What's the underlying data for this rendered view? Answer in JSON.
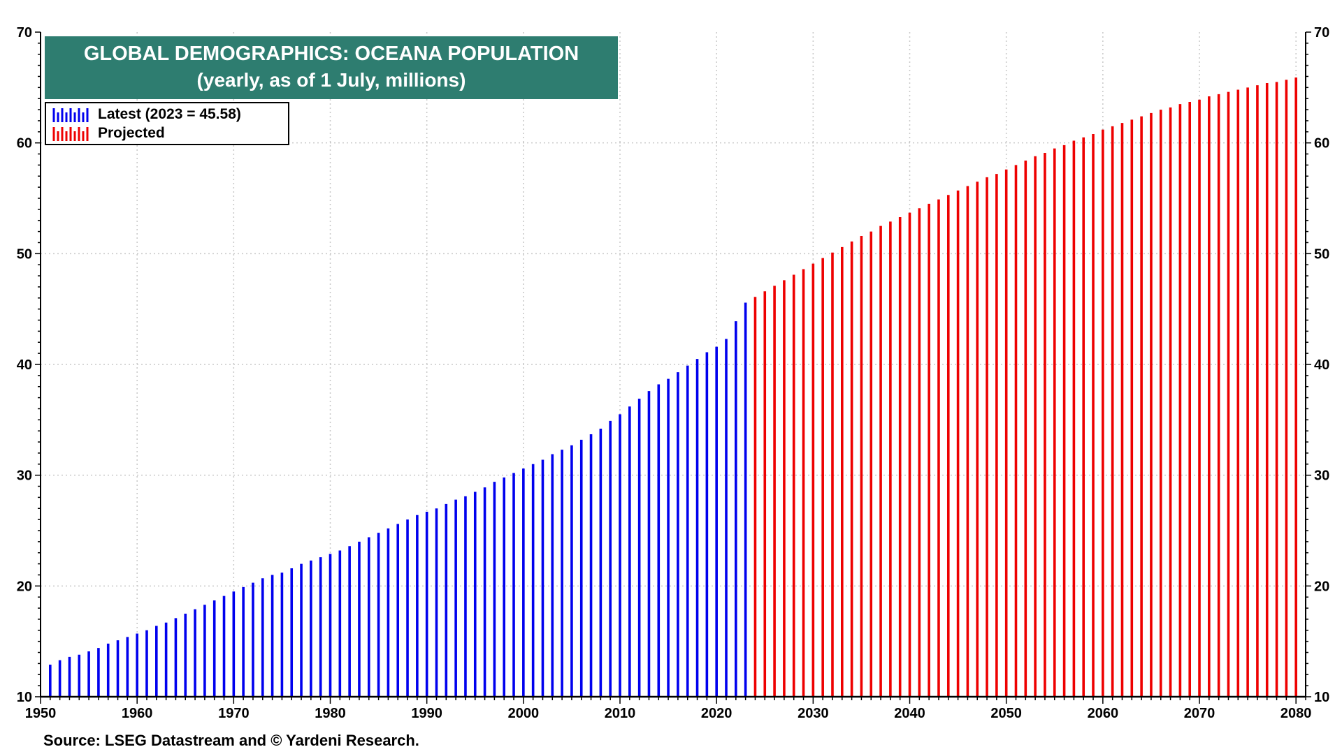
{
  "title": {
    "line1": "GLOBAL DEMOGRAPHICS: OCEANA POPULATION",
    "line2": "(yearly, as of 1 July, millions)"
  },
  "legend": {
    "latest_label": "Latest (2023 = 45.58)",
    "projected_label": "Projected"
  },
  "source": "Source: LSEG Datastream and © Yardeni Research.",
  "colors": {
    "latest": "#0000ee",
    "projected": "#ee0000",
    "title_bg": "#2e7d70",
    "grid": "#c8c8c8"
  },
  "chart_data": {
    "type": "bar",
    "title": "GLOBAL DEMOGRAPHICS: OCEANA POPULATION",
    "subtitle": "(yearly, as of 1 July, millions)",
    "xlabel": "",
    "ylabel": "",
    "xlim": [
      1950,
      2081
    ],
    "ylim": [
      10,
      70
    ],
    "grid": true,
    "legend_position": "top-left",
    "x_ticks": [
      "1950",
      "1960",
      "1970",
      "1980",
      "1990",
      "2000",
      "2010",
      "2020",
      "2030",
      "2040",
      "2050",
      "2060",
      "2070",
      "2080"
    ],
    "y_ticks": [
      "10",
      "20",
      "30",
      "40",
      "50",
      "60",
      "70"
    ],
    "series": [
      {
        "name": "Latest (2023 = 45.58)",
        "color": "#0000ee",
        "x": [
          1951,
          1952,
          1953,
          1954,
          1955,
          1956,
          1957,
          1958,
          1959,
          1960,
          1961,
          1962,
          1963,
          1964,
          1965,
          1966,
          1967,
          1968,
          1969,
          1970,
          1971,
          1972,
          1973,
          1974,
          1975,
          1976,
          1977,
          1978,
          1979,
          1980,
          1981,
          1982,
          1983,
          1984,
          1985,
          1986,
          1987,
          1988,
          1989,
          1990,
          1991,
          1992,
          1993,
          1994,
          1995,
          1996,
          1997,
          1998,
          1999,
          2000,
          2001,
          2002,
          2003,
          2004,
          2005,
          2006,
          2007,
          2008,
          2009,
          2010,
          2011,
          2012,
          2013,
          2014,
          2015,
          2016,
          2017,
          2018,
          2019,
          2020,
          2021,
          2022,
          2023
        ],
        "values": [
          12.9,
          13.3,
          13.6,
          13.8,
          14.1,
          14.4,
          14.8,
          15.1,
          15.4,
          15.7,
          16.0,
          16.4,
          16.7,
          17.1,
          17.5,
          17.9,
          18.3,
          18.7,
          19.1,
          19.5,
          19.9,
          20.3,
          20.7,
          21.0,
          21.2,
          21.6,
          22.0,
          22.3,
          22.6,
          22.9,
          23.2,
          23.6,
          24.0,
          24.4,
          24.8,
          25.2,
          25.6,
          26.0,
          26.4,
          26.7,
          27.0,
          27.4,
          27.8,
          28.1,
          28.5,
          28.9,
          29.4,
          29.8,
          30.2,
          30.6,
          31.0,
          31.4,
          31.9,
          32.3,
          32.7,
          33.2,
          33.7,
          34.2,
          34.9,
          35.5,
          36.2,
          36.9,
          37.6,
          38.2,
          38.7,
          39.3,
          39.9,
          40.5,
          41.1,
          41.6,
          42.3,
          43.9,
          45.58
        ]
      },
      {
        "name": "Projected",
        "color": "#ee0000",
        "x": [
          2024,
          2025,
          2026,
          2027,
          2028,
          2029,
          2030,
          2031,
          2032,
          2033,
          2034,
          2035,
          2036,
          2037,
          2038,
          2039,
          2040,
          2041,
          2042,
          2043,
          2044,
          2045,
          2046,
          2047,
          2048,
          2049,
          2050,
          2051,
          2052,
          2053,
          2054,
          2055,
          2056,
          2057,
          2058,
          2059,
          2060,
          2061,
          2062,
          2063,
          2064,
          2065,
          2066,
          2067,
          2068,
          2069,
          2070,
          2071,
          2072,
          2073,
          2074,
          2075,
          2076,
          2077,
          2078,
          2079,
          2080
        ],
        "values": [
          46.1,
          46.6,
          47.1,
          47.6,
          48.1,
          48.6,
          49.1,
          49.6,
          50.1,
          50.6,
          51.1,
          51.6,
          52.0,
          52.5,
          52.9,
          53.3,
          53.7,
          54.1,
          54.5,
          54.9,
          55.3,
          55.7,
          56.1,
          56.5,
          56.9,
          57.2,
          57.6,
          58.0,
          58.4,
          58.8,
          59.1,
          59.5,
          59.8,
          60.2,
          60.5,
          60.8,
          61.2,
          61.5,
          61.8,
          62.1,
          62.4,
          62.7,
          63.0,
          63.2,
          63.5,
          63.7,
          63.9,
          64.2,
          64.4,
          64.6,
          64.8,
          65.0,
          65.2,
          65.4,
          65.5,
          65.7,
          65.9
        ]
      }
    ]
  }
}
